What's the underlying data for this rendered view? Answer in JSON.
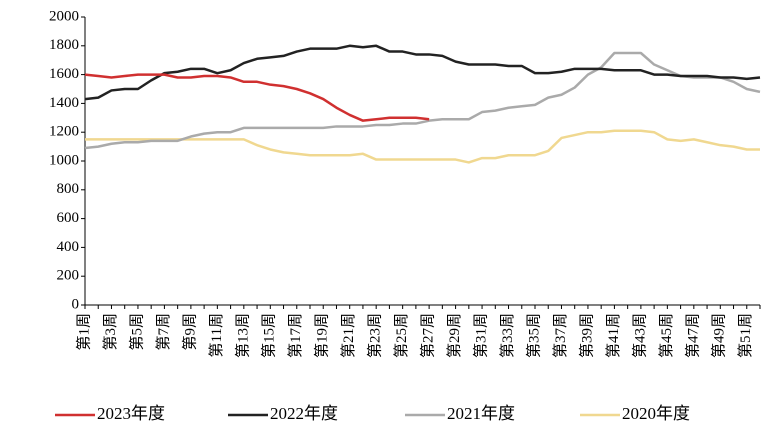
{
  "chart_data": {
    "type": "line",
    "categories": [
      "第1周",
      null,
      "第3周",
      null,
      "第5周",
      null,
      "第7周",
      null,
      "第9周",
      null,
      "第11周",
      null,
      "第13周",
      null,
      "第15周",
      null,
      "第17周",
      null,
      "第19周",
      null,
      "第21周",
      null,
      "第23周",
      null,
      "第25周",
      null,
      "第27周",
      null,
      "第29周",
      null,
      "第31周",
      null,
      "第33周",
      null,
      "第35周",
      null,
      "第37周",
      null,
      "第39周",
      null,
      "第41周",
      null,
      "第43周",
      null,
      "第45周",
      null,
      "第47周",
      null,
      "第49周",
      null,
      "第51周",
      null
    ],
    "series": [
      {
        "name": "2023年度",
        "color": "#d03030",
        "values": [
          1600,
          1590,
          1580,
          1590,
          1600,
          1600,
          1600,
          1580,
          1580,
          1590,
          1590,
          1580,
          1550,
          1550,
          1530,
          1520,
          1500,
          1470,
          1430,
          1370,
          1320,
          1280,
          1290,
          1300,
          1300,
          1300,
          1290,
          null,
          null,
          null,
          null,
          null,
          null,
          null,
          null,
          null,
          null,
          null,
          null,
          null,
          null,
          null,
          null,
          null,
          null,
          null,
          null,
          null,
          null,
          null,
          null,
          null
        ]
      },
      {
        "name": "2022年度",
        "color": "#222222",
        "values": [
          1430,
          1440,
          1490,
          1500,
          1500,
          1560,
          1610,
          1620,
          1640,
          1640,
          1610,
          1630,
          1680,
          1710,
          1720,
          1730,
          1760,
          1780,
          1780,
          1780,
          1800,
          1790,
          1800,
          1760,
          1760,
          1740,
          1740,
          1730,
          1690,
          1670,
          1670,
          1670,
          1660,
          1660,
          1610,
          1610,
          1620,
          1640,
          1640,
          1640,
          1630,
          1630,
          1630,
          1600,
          1600,
          1590,
          1590,
          1590,
          1580,
          1580,
          1570,
          1580
        ]
      },
      {
        "name": "2021年度",
        "color": "#aaaaaa",
        "values": [
          1090,
          1100,
          1120,
          1130,
          1130,
          1140,
          1140,
          1140,
          1170,
          1190,
          1200,
          1200,
          1230,
          1230,
          1230,
          1230,
          1230,
          1230,
          1230,
          1240,
          1240,
          1240,
          1250,
          1250,
          1260,
          1260,
          1280,
          1290,
          1290,
          1290,
          1340,
          1350,
          1370,
          1380,
          1390,
          1440,
          1460,
          1510,
          1600,
          1650,
          1750,
          1750,
          1750,
          1670,
          1630,
          1590,
          1580,
          1580,
          1580,
          1550,
          1500,
          1480
        ]
      },
      {
        "name": "2020年度",
        "color": "#f0d890",
        "values": [
          1150,
          1150,
          1150,
          1150,
          1150,
          1150,
          1150,
          1150,
          1150,
          1150,
          1150,
          1150,
          1150,
          1110,
          1080,
          1060,
          1050,
          1040,
          1040,
          1040,
          1040,
          1050,
          1010,
          1010,
          1010,
          1010,
          1010,
          1010,
          1010,
          990,
          1020,
          1020,
          1040,
          1040,
          1040,
          1070,
          1160,
          1180,
          1200,
          1200,
          1210,
          1210,
          1210,
          1200,
          1150,
          1140,
          1150,
          1130,
          1110,
          1100,
          1080,
          1080
        ]
      }
    ],
    "ylim": [
      0,
      2000
    ],
    "yticks": [
      0,
      200,
      400,
      600,
      800,
      1000,
      1200,
      1400,
      1600,
      1800,
      2000
    ],
    "legend": "bottom"
  }
}
